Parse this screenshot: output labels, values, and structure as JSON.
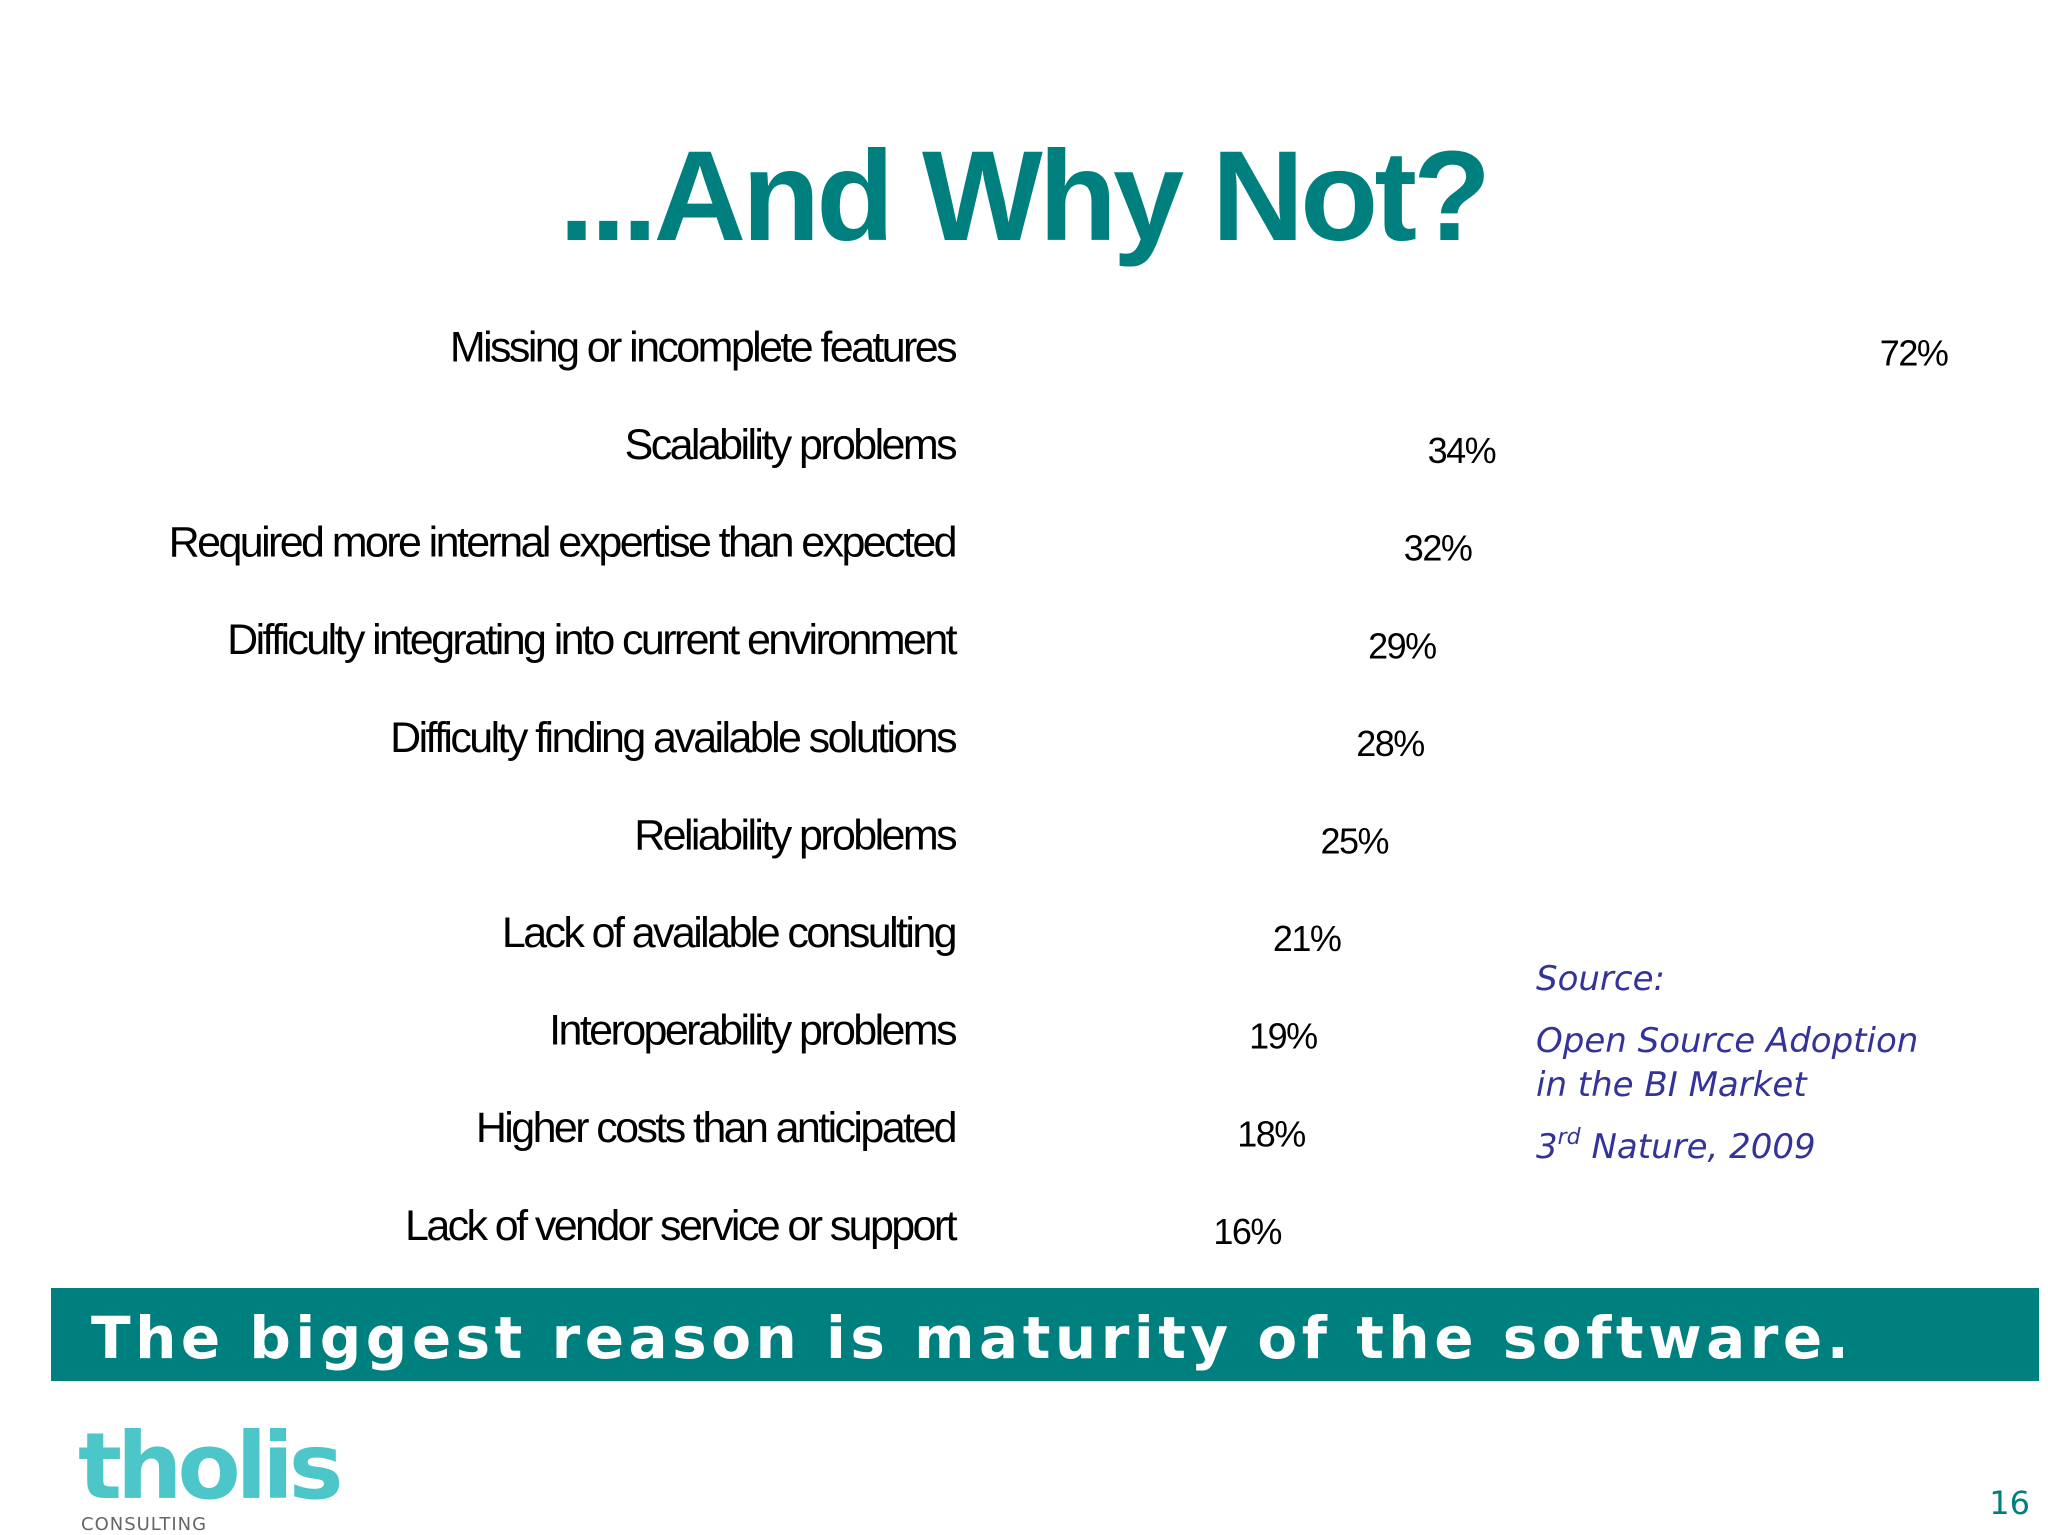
{
  "chart_data": {
    "type": "bar",
    "orientation": "horizontal",
    "title": "...And Why Not?",
    "categories": [
      "Missing or incomplete features",
      "Scalability problems",
      "Required more internal expertise than expected",
      "Difficulty integrating into current environment",
      "Difficulty finding available solutions",
      "Reliability problems",
      "Lack of available consulting",
      "Interoperability problems",
      "Higher costs than anticipated",
      "Lack of vendor service or support"
    ],
    "values": [
      72,
      34,
      32,
      29,
      28,
      25,
      21,
      19,
      18,
      16
    ],
    "value_labels": [
      "72%",
      "34%",
      "32%",
      "29%",
      "28%",
      "25%",
      "21%",
      "19%",
      "18%",
      "16%"
    ],
    "color": "#ffffff",
    "source": {
      "label": "Source:",
      "title_lines": [
        "Open Source Adoption",
        "in the BI Market"
      ],
      "publisher_number": "3",
      "publisher_suffix": "rd",
      "publisher_rest": " Nature, 2009"
    },
    "banner": "The biggest reason is maturity of the software.",
    "logo": {
      "name": "tholis",
      "tagline": "CONSULTING"
    },
    "page_number": "16"
  }
}
